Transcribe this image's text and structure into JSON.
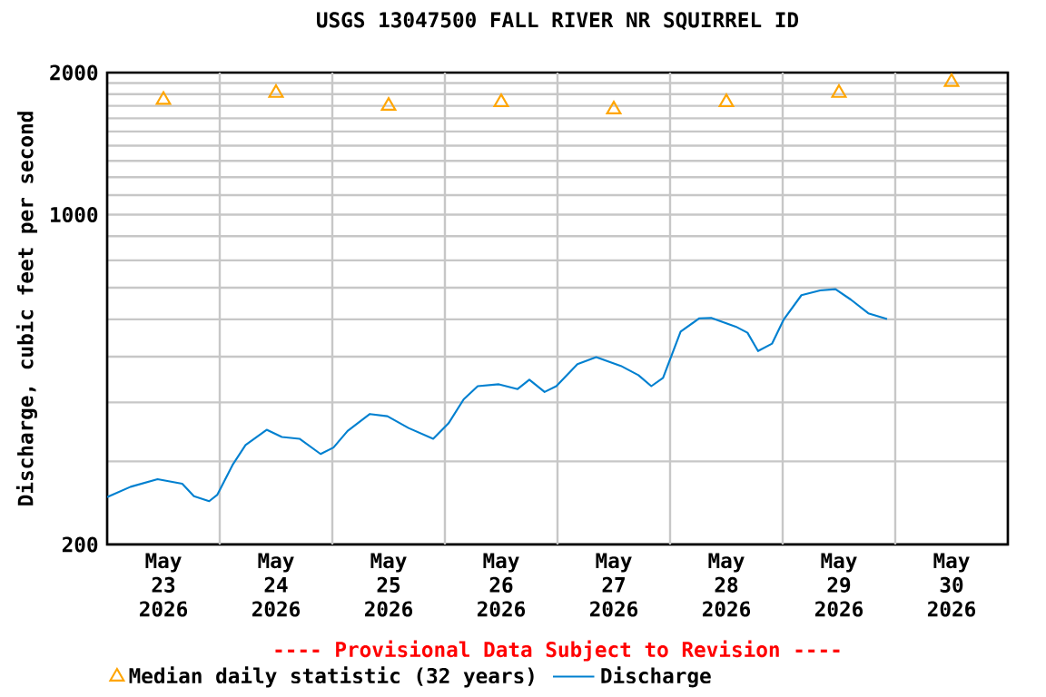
{
  "chart_data": {
    "type": "line",
    "title": "USGS 13047500 FALL RIVER NR SQUIRREL ID",
    "ylabel": "Discharge, cubic feet per second",
    "annotations": [
      "---- Provisional Data Subject to Revision ----"
    ],
    "log": "y",
    "grid": true,
    "legend": "bottom",
    "xlim": [
      "2026-05-23T00:00",
      "2026-05-31T00:00"
    ],
    "xticks": [
      {
        "value": "2026-05-23T12:00",
        "label": "May 23 2026"
      },
      {
        "value": "2026-05-24T00:00",
        "label": null
      },
      {
        "value": "2026-05-24T12:00",
        "label": "May 24 2026"
      },
      {
        "value": "2026-05-25T00:00",
        "label": null
      },
      {
        "value": "2026-05-25T12:00",
        "label": "May 25 2026"
      },
      {
        "value": "2026-05-26T00:00",
        "label": null
      },
      {
        "value": "2026-05-26T12:00",
        "label": "May 26 2026"
      },
      {
        "value": "2026-05-27T00:00",
        "label": null
      },
      {
        "value": "2026-05-27T12:00",
        "label": "May 27 2026"
      },
      {
        "value": "2026-05-28T00:00",
        "label": null
      },
      {
        "value": "2026-05-28T12:00",
        "label": "May 28 2026"
      },
      {
        "value": "2026-05-29T00:00",
        "label": null
      },
      {
        "value": "2026-05-29T12:00",
        "label": "May 29 2026"
      },
      {
        "value": "2026-05-30T00:00",
        "label": null
      },
      {
        "value": "2026-05-30T12:00",
        "label": "May 30 2026"
      }
    ],
    "ylim": [
      200,
      2000
    ],
    "yticks": [
      200,
      {
        "value": 300,
        "label": null
      },
      {
        "value": 400,
        "label": null
      },
      {
        "value": 500,
        "label": null
      },
      {
        "value": 600,
        "label": null
      },
      {
        "value": 700,
        "label": null
      },
      {
        "value": 800,
        "label": null
      },
      {
        "value": 900,
        "label": null
      },
      1000,
      {
        "value": 1100,
        "label": null
      },
      {
        "value": 1200,
        "label": null
      },
      {
        "value": 1300,
        "label": null
      },
      {
        "value": 1400,
        "label": null
      },
      {
        "value": 1500,
        "label": null
      },
      {
        "value": 1600,
        "label": null
      },
      {
        "value": 1700,
        "label": null
      },
      {
        "value": 1800,
        "label": null
      },
      {
        "value": 1900,
        "label": null
      },
      2000
    ],
    "series": [
      {
        "name": "Median daily statistic (32 years)",
        "type": "scatter",
        "marker": "triangle",
        "color": "#ffa500",
        "x": [
          "2026-05-23T12:00",
          "2026-05-24T12:00",
          "2026-05-25T12:00",
          "2026-05-26T12:00",
          "2026-05-27T12:00",
          "2026-05-28T12:00",
          "2026-05-29T12:00",
          "2026-05-30T12:00"
        ],
        "values": [
          1750,
          1810,
          1700,
          1730,
          1670,
          1730,
          1810,
          1910
        ]
      },
      {
        "name": "Discharge",
        "marker": "none",
        "color": "#0080d0",
        "x": [
          "2026-05-23T00:00",
          "2026-05-23T05:00",
          "2026-05-23T10:45",
          "2026-05-23T16:00",
          "2026-05-23T18:30",
          "2026-05-23T21:45",
          "2026-05-23T23:30",
          "2026-05-24T02:45",
          "2026-05-24T05:30",
          "2026-05-24T10:00",
          "2026-05-24T13:15",
          "2026-05-24T17:00",
          "2026-05-24T21:30",
          "2026-05-25T00:15",
          "2026-05-25T03:15",
          "2026-05-25T08:00",
          "2026-05-25T11:45",
          "2026-05-25T16:15",
          "2026-05-25T21:30",
          "2026-05-26T00:45",
          "2026-05-26T04:00",
          "2026-05-26T07:00",
          "2026-05-26T11:30",
          "2026-05-26T15:30",
          "2026-05-26T18:00",
          "2026-05-26T21:15",
          "2026-05-26T23:45",
          "2026-05-27T04:15",
          "2026-05-27T08:15",
          "2026-05-27T13:30",
          "2026-05-27T17:15",
          "2026-05-27T20:00",
          "2026-05-27T22:30",
          "2026-05-28T02:15",
          "2026-05-28T06:15",
          "2026-05-28T08:45",
          "2026-05-28T14:00",
          "2026-05-28T16:30",
          "2026-05-28T18:45",
          "2026-05-28T21:45",
          "2026-05-29T00:15",
          "2026-05-29T04:00",
          "2026-05-29T08:00",
          "2026-05-29T11:15",
          "2026-05-29T14:30",
          "2026-05-29T18:15",
          "2026-05-29T22:15"
        ],
        "values": [
          252,
          265,
          275,
          269,
          253,
          247,
          255,
          295,
          325,
          350,
          338,
          335,
          311,
          321,
          348,
          378,
          374,
          353,
          335,
          361,
          406,
          433,
          437,
          427,
          447,
          421,
          433,
          482,
          499,
          478,
          457,
          433,
          451,
          565,
          603,
          604,
          579,
          562,
          514,
          533,
          600,
          675,
          691,
          695,
          661,
          618,
          601
        ]
      }
    ]
  }
}
